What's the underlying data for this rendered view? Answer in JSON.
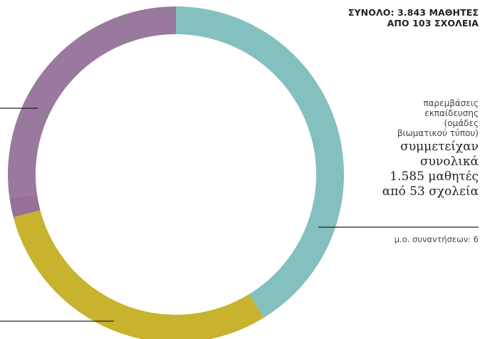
{
  "chart_data": {
    "type": "pie",
    "variant": "donut",
    "title_lines": [
      "ΣΥΝΟΛΟ: 3.843 ΜΑΘΗΤΕΣ",
      "ΑΠΟ 103 ΣΧΟΛΕΙΑ"
    ],
    "slices": [
      {
        "value": 1585,
        "color": "#84c0c0"
      },
      {
        "value": 1140,
        "color": "#c8b22e"
      },
      {
        "value": 70,
        "color": "#967097"
      },
      {
        "value": 1048,
        "color": "#9a799e"
      }
    ],
    "annotation": {
      "small_lines": [
        "παρεμβάσεις",
        "εκπαίδευσης",
        "(ομάδες",
        "βιωματικού τύπου)"
      ],
      "big_lines": [
        "συμμετείχαν",
        "συνολικά",
        "1.585 μαθητές",
        "από 53 σχολεία"
      ],
      "meetings": "μ.ο. συναντήσεων: 6"
    }
  }
}
